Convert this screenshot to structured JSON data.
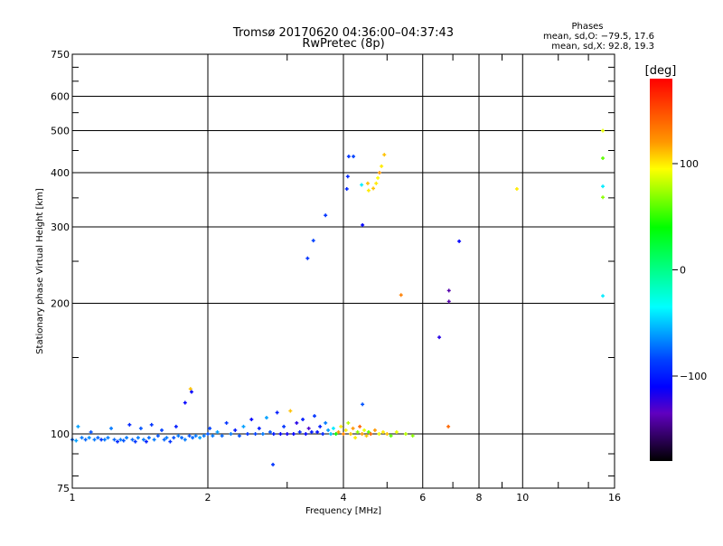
{
  "chart_data": {
    "type": "scatter",
    "title": "Tromsø 20170620 04:36:00–04:37:43",
    "subtitle": "RwPretec (8p)",
    "xlabel": "Frequency [MHz]",
    "ylabel": "Stationary phase Virtual Height [km]",
    "xscale": "log",
    "yscale": "log",
    "xlim": [
      1,
      16
    ],
    "ylim": [
      75,
      750
    ],
    "grid": true,
    "x_ticks": [
      1,
      2,
      4,
      6,
      8,
      10,
      16
    ],
    "x_tick_labels": [
      "1",
      "2",
      "4",
      "6",
      "8",
      "10",
      "16"
    ],
    "x_minor_ticks": [
      3,
      5,
      7,
      9,
      12,
      14
    ],
    "x_gridlines": [
      2,
      4,
      6,
      8,
      10
    ],
    "y_ticks": [
      75,
      100,
      200,
      300,
      400,
      500,
      600,
      750
    ],
    "y_tick_labels": [
      "75",
      "100",
      "200",
      "300",
      "400",
      "500",
      "600",
      "750"
    ],
    "y_minor_ticks": [
      80,
      90,
      150,
      250,
      350,
      450,
      550,
      650,
      700
    ],
    "y_gridlines": [
      100,
      200,
      300,
      400,
      500,
      600
    ],
    "stats": {
      "title": "Phases",
      "line_o": "mean, sd,O: −79.5, 17.6",
      "line_x": "mean, sd,X:  92.8, 19.3"
    },
    "colorbar": {
      "label": "[deg]",
      "range": [
        -180,
        180
      ],
      "ticks": [
        100,
        0,
        -100
      ],
      "tick_labels": [
        "100",
        "0",
        "−100"
      ],
      "stops": [
        [
          180,
          "#ff0000"
        ],
        [
          120,
          "#ff9900"
        ],
        [
          95,
          "#ffff00"
        ],
        [
          40,
          "#00ff00"
        ],
        [
          -35,
          "#00ffff"
        ],
        [
          -85,
          "#0040ff"
        ],
        [
          -110,
          "#0000ff"
        ],
        [
          -135,
          "#6000c0"
        ],
        [
          -180,
          "#000000"
        ]
      ]
    },
    "points_columns": [
      "frequency_mhz",
      "virtual_height_km",
      "phase_deg"
    ],
    "points": [
      [
        4.11,
        436,
        -90
      ],
      [
        4.21,
        436,
        -85
      ],
      [
        4.09,
        392,
        -95
      ],
      [
        4.07,
        367,
        -95
      ],
      [
        3.65,
        319,
        -90
      ],
      [
        3.43,
        279,
        -85
      ],
      [
        3.33,
        254,
        -90
      ],
      [
        4.41,
        303,
        -110
      ],
      [
        4.93,
        440,
        110
      ],
      [
        4.86,
        414,
        100
      ],
      [
        4.81,
        400,
        120
      ],
      [
        4.77,
        389,
        95
      ],
      [
        4.73,
        378,
        100
      ],
      [
        4.66,
        368,
        110
      ],
      [
        4.55,
        364,
        100
      ],
      [
        4.39,
        375,
        -40
      ],
      [
        4.53,
        378,
        110
      ],
      [
        5.37,
        209,
        130
      ],
      [
        7.23,
        278,
        -110
      ],
      [
        6.86,
        214,
        -140
      ],
      [
        6.86,
        202,
        -140
      ],
      [
        6.53,
        167,
        -120
      ],
      [
        6.84,
        104,
        140
      ],
      [
        9.71,
        367,
        100
      ],
      [
        15.07,
        500,
        90
      ],
      [
        15.07,
        432,
        60
      ],
      [
        15.07,
        372,
        -40
      ],
      [
        15.07,
        351,
        70
      ],
      [
        15.07,
        208,
        -40
      ],
      [
        1.83,
        127,
        110
      ],
      [
        1.84,
        125,
        -110
      ],
      [
        1.78,
        118,
        -110
      ],
      [
        2.79,
        85,
        -90
      ],
      [
        4.41,
        117,
        -80
      ],
      [
        1.0,
        97,
        -75
      ],
      [
        1.02,
        96.5,
        -60
      ],
      [
        1.03,
        104,
        -60
      ],
      [
        1.05,
        98,
        -70
      ],
      [
        1.07,
        97,
        -75
      ],
      [
        1.09,
        98,
        -65
      ],
      [
        1.1,
        101,
        -80
      ],
      [
        1.12,
        97,
        -70
      ],
      [
        1.14,
        98,
        -75
      ],
      [
        1.16,
        97,
        -90
      ],
      [
        1.18,
        97,
        -70
      ],
      [
        1.2,
        98,
        -70
      ],
      [
        1.22,
        103,
        -70
      ],
      [
        1.24,
        97,
        -75
      ],
      [
        1.26,
        96,
        -95
      ],
      [
        1.28,
        97,
        -70
      ],
      [
        1.3,
        96.5,
        -80
      ],
      [
        1.32,
        98,
        -70
      ],
      [
        1.34,
        105,
        -95
      ],
      [
        1.36,
        97,
        -75
      ],
      [
        1.38,
        96,
        -90
      ],
      [
        1.4,
        98,
        -70
      ],
      [
        1.42,
        103,
        -80
      ],
      [
        1.44,
        97,
        -70
      ],
      [
        1.46,
        96,
        -100
      ],
      [
        1.48,
        98,
        -75
      ],
      [
        1.5,
        105,
        -90
      ],
      [
        1.52,
        97,
        -70
      ],
      [
        1.55,
        99,
        -80
      ],
      [
        1.58,
        102,
        -85
      ],
      [
        1.6,
        97,
        -75
      ],
      [
        1.62,
        98,
        -70
      ],
      [
        1.65,
        96,
        -90
      ],
      [
        1.68,
        98,
        -80
      ],
      [
        1.7,
        104,
        -100
      ],
      [
        1.72,
        99,
        -70
      ],
      [
        1.75,
        98,
        -75
      ],
      [
        1.78,
        97,
        -70
      ],
      [
        1.82,
        99,
        -80
      ],
      [
        1.85,
        98,
        -75
      ],
      [
        1.88,
        99,
        -70
      ],
      [
        1.92,
        98,
        -60
      ],
      [
        1.96,
        99,
        -70
      ],
      [
        2.0,
        100,
        -80
      ],
      [
        2.02,
        103,
        -85
      ],
      [
        2.05,
        99,
        -70
      ],
      [
        2.1,
        101,
        -60
      ],
      [
        2.15,
        99,
        -75
      ],
      [
        2.2,
        106,
        -90
      ],
      [
        2.25,
        100,
        -70
      ],
      [
        2.3,
        102,
        -100
      ],
      [
        2.35,
        99,
        -80
      ],
      [
        2.4,
        104,
        -60
      ],
      [
        2.45,
        100,
        -90
      ],
      [
        2.5,
        108,
        -110
      ],
      [
        2.55,
        100,
        -85
      ],
      [
        2.6,
        103,
        -100
      ],
      [
        2.65,
        100,
        -70
      ],
      [
        2.7,
        109,
        -60
      ],
      [
        2.75,
        101,
        -80
      ],
      [
        2.8,
        100,
        -100
      ],
      [
        2.85,
        112,
        -100
      ],
      [
        2.9,
        100,
        -110
      ],
      [
        2.95,
        104,
        -90
      ],
      [
        3.0,
        100,
        -115
      ],
      [
        3.05,
        113,
        110
      ],
      [
        3.1,
        100,
        -110
      ],
      [
        3.15,
        106,
        -120
      ],
      [
        3.2,
        101,
        -95
      ],
      [
        3.25,
        108,
        -100
      ],
      [
        3.3,
        100,
        -110
      ],
      [
        3.35,
        103,
        -130
      ],
      [
        3.4,
        101,
        -100
      ],
      [
        3.45,
        110,
        -90
      ],
      [
        3.5,
        101,
        -105
      ],
      [
        3.55,
        104,
        -100
      ],
      [
        3.6,
        100,
        -95
      ],
      [
        3.65,
        106,
        -70
      ],
      [
        3.7,
        102,
        -60
      ],
      [
        3.75,
        100,
        -50
      ],
      [
        3.8,
        103,
        -40
      ],
      [
        3.85,
        100,
        40
      ],
      [
        3.9,
        101,
        120
      ],
      [
        3.95,
        104,
        100
      ],
      [
        4.0,
        100,
        130
      ],
      [
        4.05,
        102,
        100
      ],
      [
        4.1,
        106,
        80
      ],
      [
        4.15,
        100,
        110
      ],
      [
        4.2,
        103,
        120
      ],
      [
        4.25,
        98,
        100
      ],
      [
        4.3,
        101,
        70
      ],
      [
        4.35,
        104,
        140
      ],
      [
        4.4,
        100,
        120
      ],
      [
        4.45,
        102,
        90
      ],
      [
        4.5,
        99,
        110
      ],
      [
        4.55,
        101,
        60
      ],
      [
        4.6,
        100,
        140
      ],
      [
        4.7,
        102,
        120
      ],
      [
        4.8,
        100,
        90
      ],
      [
        4.9,
        101,
        100
      ],
      [
        5.0,
        100,
        110
      ],
      [
        5.1,
        99,
        60
      ],
      [
        5.25,
        101,
        90
      ],
      [
        5.5,
        100,
        80
      ],
      [
        5.7,
        99,
        70
      ]
    ]
  }
}
